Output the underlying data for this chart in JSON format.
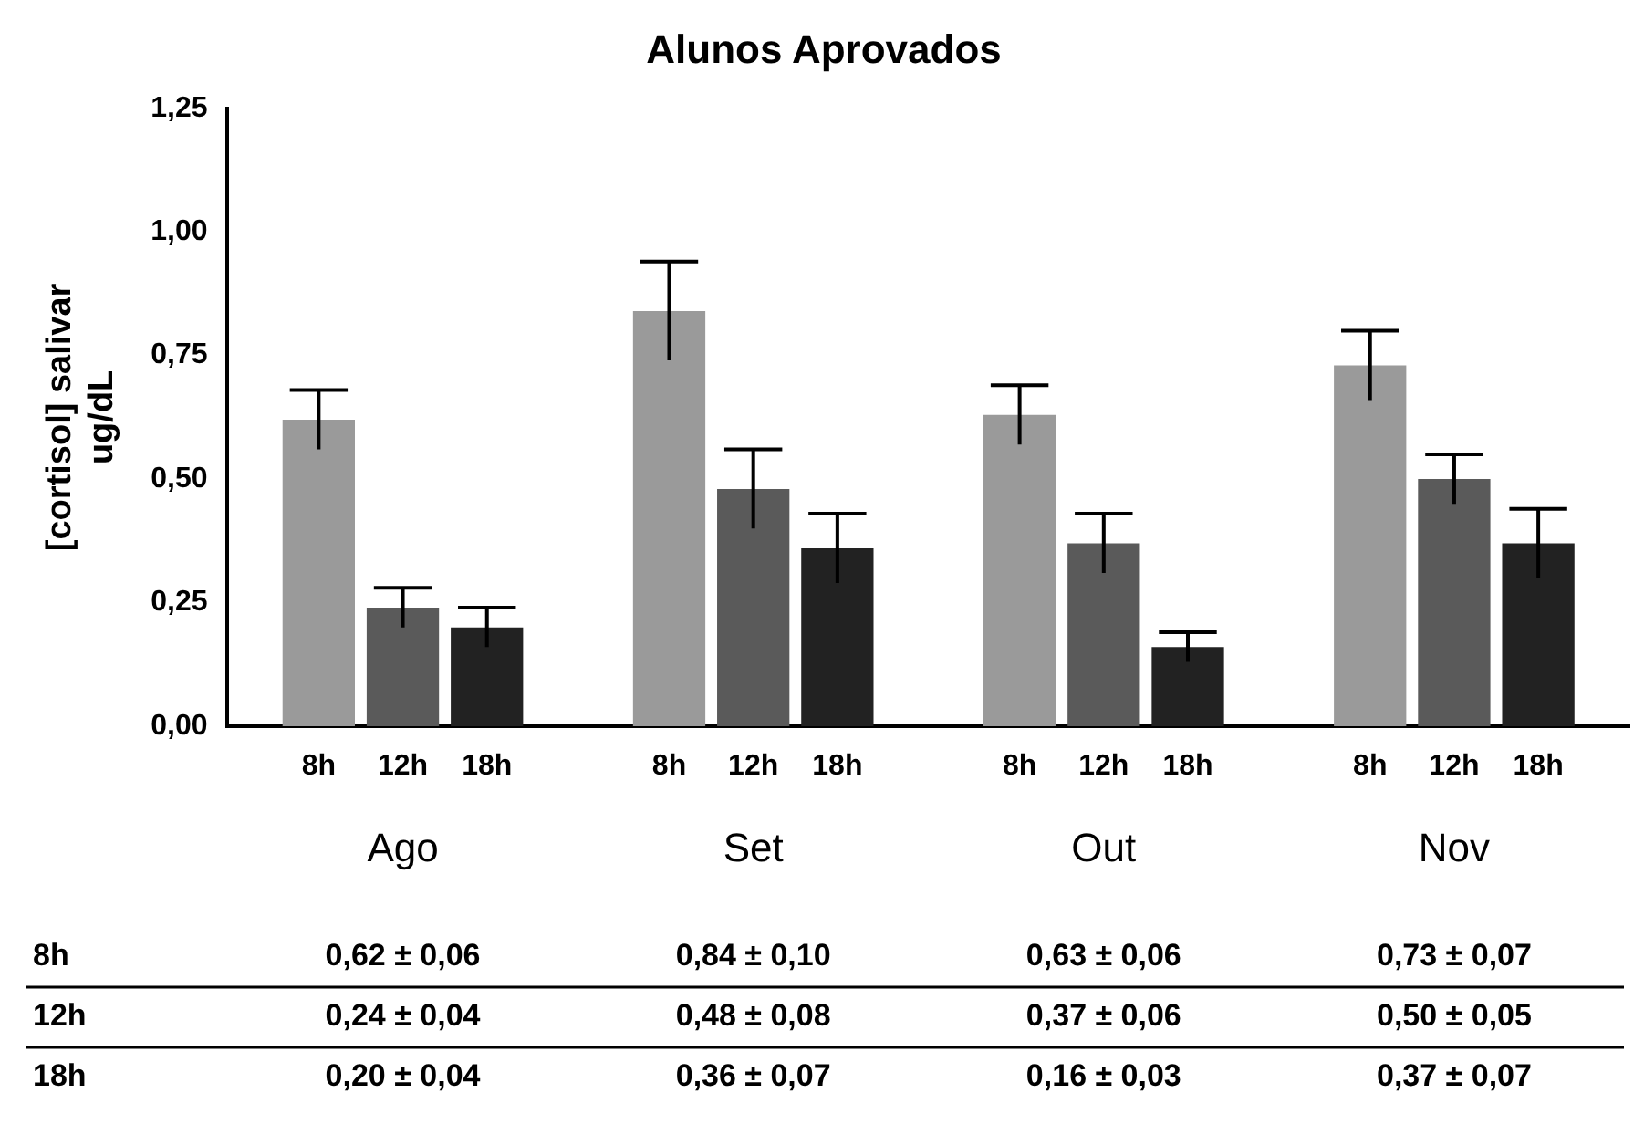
{
  "chart_data": {
    "type": "bar",
    "title": "Alunos Aprovados",
    "ylabel": "[cortisol] salivar\nug/dL",
    "categories": [
      "Ago",
      "Set",
      "Out",
      "Nov"
    ],
    "series": [
      {
        "name": "8h",
        "color": "#9a9a9a",
        "values": [
          0.62,
          0.84,
          0.63,
          0.73
        ],
        "errors": [
          0.06,
          0.1,
          0.06,
          0.07
        ],
        "value_labels": [
          "0,62 ± 0,06",
          "0,84 ± 0,10",
          "0,63 ± 0,06",
          "0,73 ± 0,07"
        ]
      },
      {
        "name": "12h",
        "color": "#5a5a5a",
        "values": [
          0.24,
          0.48,
          0.37,
          0.5
        ],
        "errors": [
          0.04,
          0.08,
          0.06,
          0.05
        ],
        "value_labels": [
          "0,24 ± 0,04",
          "0,48 ± 0,08",
          "0,37 ± 0,06",
          "0,50 ± 0,05"
        ]
      },
      {
        "name": "18h",
        "color": "#222222",
        "values": [
          0.2,
          0.36,
          0.16,
          0.37
        ],
        "errors": [
          0.04,
          0.07,
          0.03,
          0.07
        ],
        "value_labels": [
          "0,20 ± 0,04",
          "0,36 ± 0,07",
          "0,16 ± 0,03",
          "0,37 ± 0,07"
        ]
      }
    ],
    "ylim": [
      0,
      1.25
    ],
    "yticks": [
      {
        "value": 0,
        "label": "0,00"
      },
      {
        "value": 0.25,
        "label": "0,25"
      },
      {
        "value": 0.5,
        "label": "0,50"
      },
      {
        "value": 0.75,
        "label": "0,75"
      },
      {
        "value": 1,
        "label": "1,00"
      },
      {
        "value": 1.25,
        "label": "1,25"
      }
    ],
    "grid": false,
    "legend": false
  }
}
